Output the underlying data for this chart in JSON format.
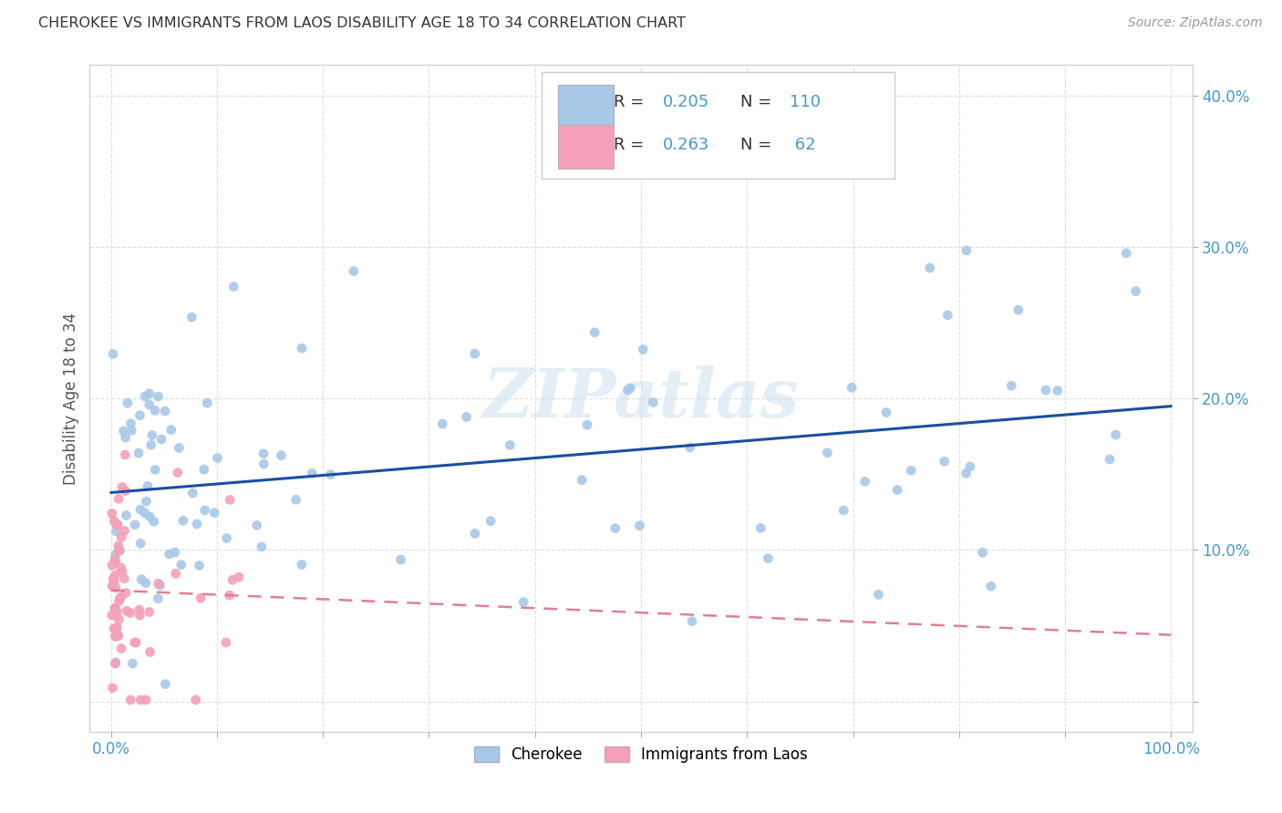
{
  "title": "CHEROKEE VS IMMIGRANTS FROM LAOS DISABILITY AGE 18 TO 34 CORRELATION CHART",
  "source": "Source: ZipAtlas.com",
  "ylabel_label": "Disability Age 18 to 34",
  "xlim": [
    -0.02,
    1.02
  ],
  "ylim": [
    -0.02,
    0.42
  ],
  "ytick_vals": [
    0.0,
    0.1,
    0.2,
    0.3,
    0.4
  ],
  "ytick_labels": [
    "",
    "10.0%",
    "20.0%",
    "30.0%",
    "40.0%"
  ],
  "xtick_vals": [
    0.0,
    0.1,
    0.2,
    0.3,
    0.4,
    0.5,
    0.6,
    0.7,
    0.8,
    0.9,
    1.0
  ],
  "xtick_labels": [
    "0.0%",
    "",
    "",
    "",
    "",
    "",
    "",
    "",
    "",
    "",
    "100.0%"
  ],
  "cherokee_color": "#a8c8e8",
  "laos_color": "#f4a0b8",
  "cherokee_line_color": "#1a4fa0",
  "laos_line_color": "#e08090",
  "tick_color": "#4499cc",
  "background_color": "#ffffff",
  "grid_color": "#dddddd",
  "watermark": "ZIPatlas",
  "cherokee_R": "0.205",
  "cherokee_N": "110",
  "laos_R": "0.263",
  "laos_N": "62",
  "legend_R_color": "#333333",
  "legend_val_color": "#4499cc",
  "legend_N_color": "#4499cc"
}
